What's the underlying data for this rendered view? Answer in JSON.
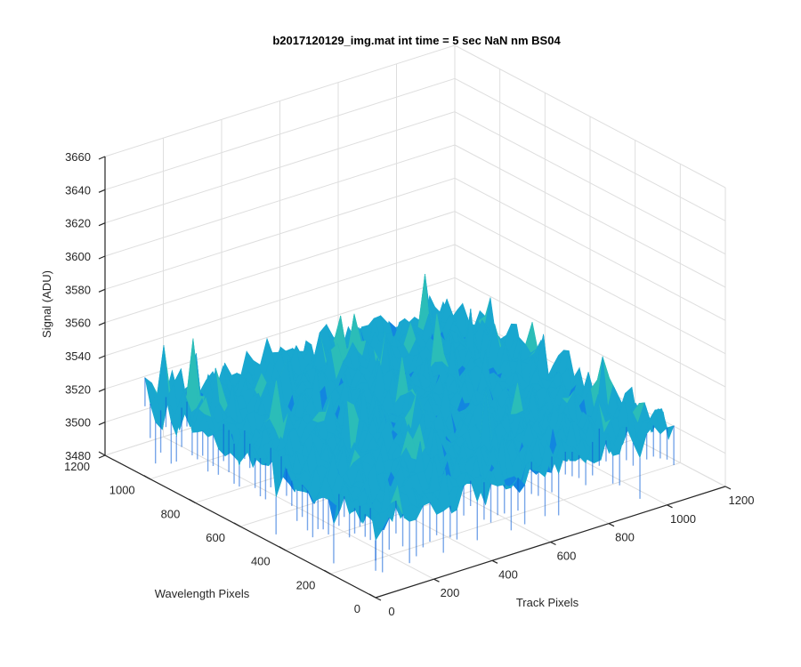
{
  "chart_data": {
    "type": "surface",
    "title": "b2017120129_img.mat int time = 5 sec  NaN nm BS04",
    "xlabel": "Track Pixels",
    "ylabel": "Wavelength Pixels",
    "zlabel": "Signal (ADU)",
    "xlim": [
      0,
      1200
    ],
    "ylim": [
      0,
      1200
    ],
    "zlim": [
      3480,
      3660
    ],
    "x_ticks": [
      0,
      200,
      400,
      600,
      800,
      1000,
      1200
    ],
    "y_ticks": [
      0,
      200,
      400,
      600,
      800,
      1000,
      1200
    ],
    "z_ticks": [
      3480,
      3500,
      3520,
      3540,
      3560,
      3580,
      3600,
      3620,
      3640,
      3660
    ],
    "x_tick_labels": [
      "0",
      "200",
      "400",
      "600",
      "800",
      "1000",
      "1200"
    ],
    "y_tick_labels": [
      "0",
      "200",
      "400",
      "600",
      "800",
      "1000",
      "1200"
    ],
    "z_tick_labels": [
      "3480",
      "3500",
      "3520",
      "3540",
      "3560",
      "3580",
      "3600",
      "3620",
      "3640",
      "3660"
    ],
    "grid": true,
    "data_extent": {
      "x": [
        1,
        1024
      ],
      "y": [
        1,
        1024
      ]
    },
    "surface_mean": 3525,
    "surface_range": [
      3490,
      3600
    ],
    "colormap": [
      "#0a5fd8",
      "#1286e0",
      "#19a7cf",
      "#2bbdb8",
      "#7ac98a",
      "#f5e24a"
    ]
  }
}
